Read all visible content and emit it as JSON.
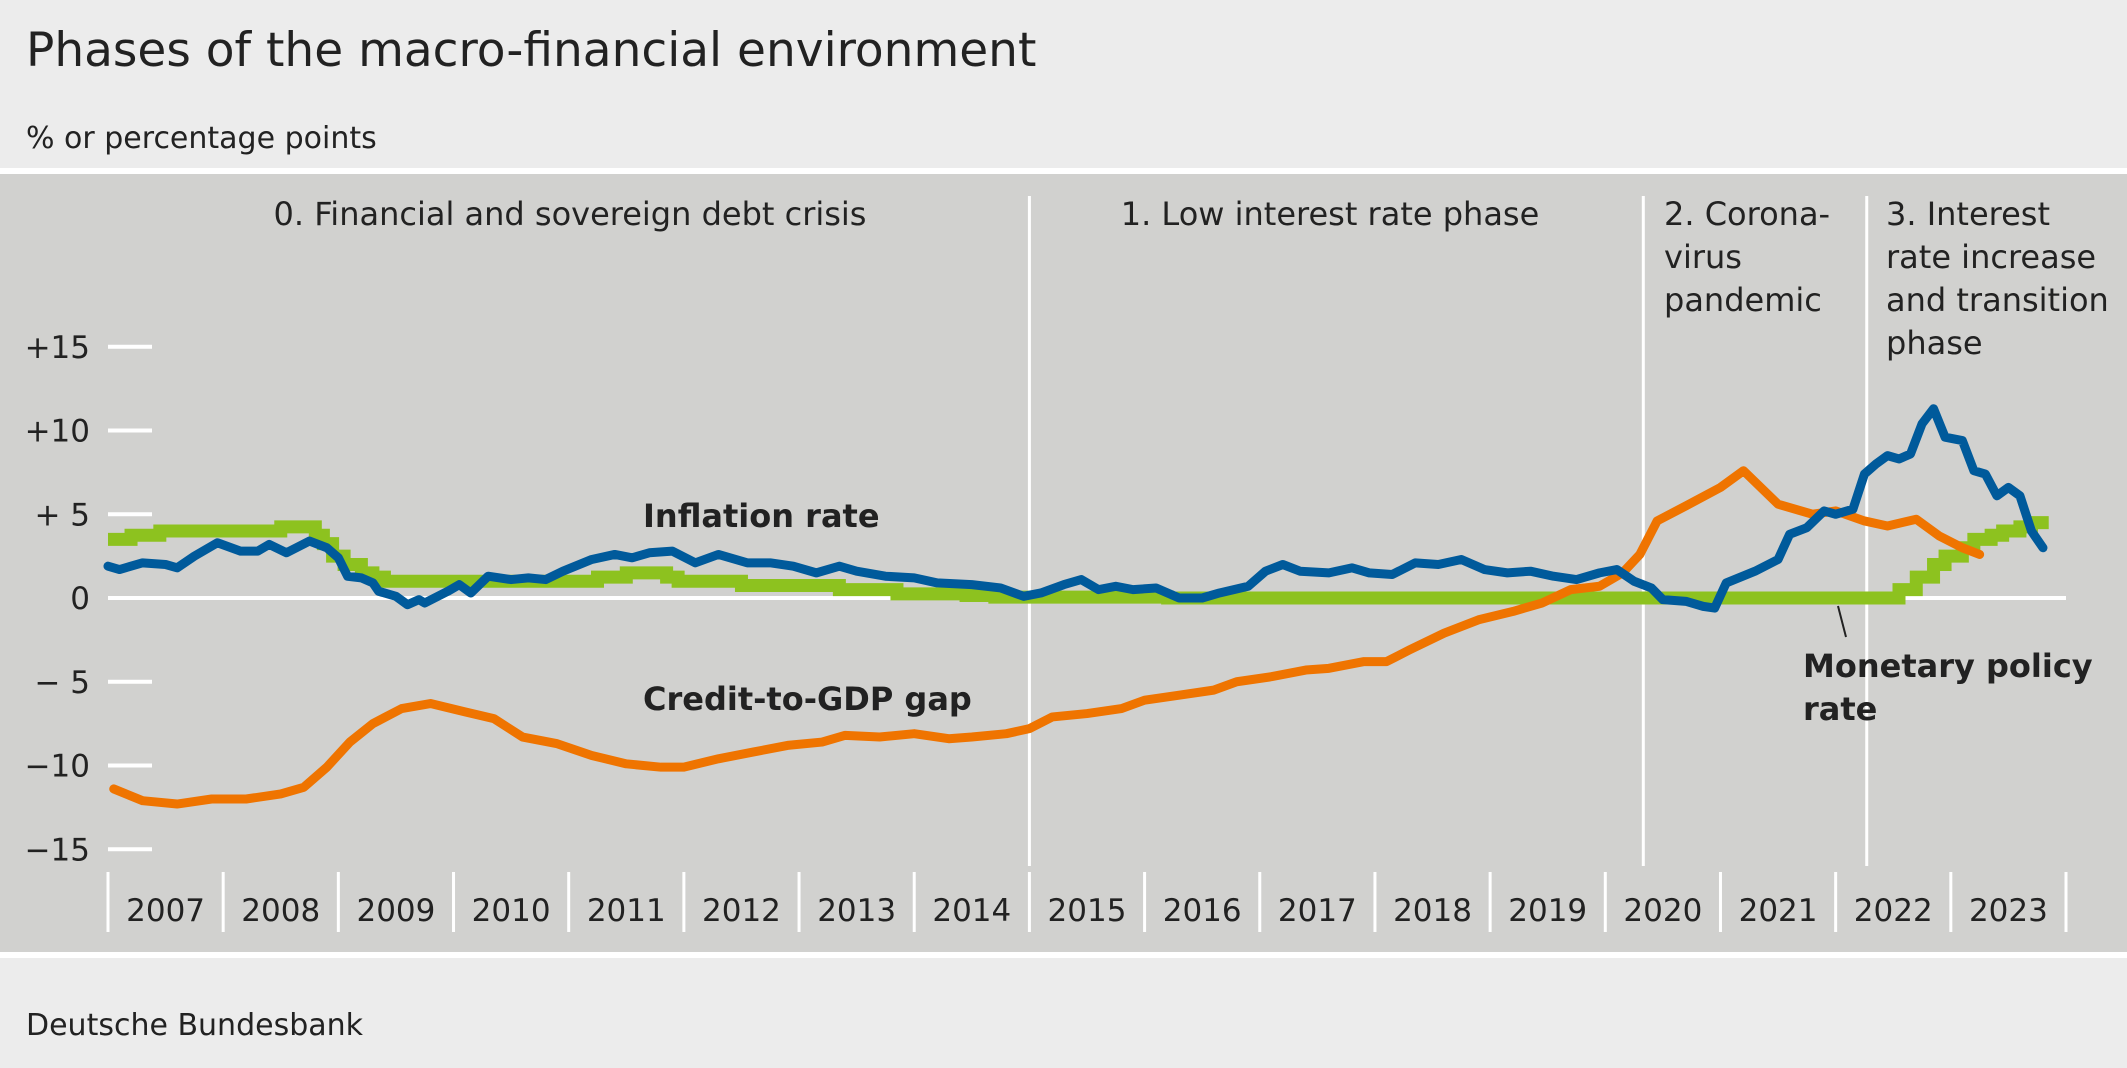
{
  "chart_data": {
    "type": "line",
    "title": "Phases of the macro-financial environment",
    "subtitle": "% or percentage points",
    "source": "Deutsche Bundesbank",
    "xlim": [
      2007,
      2024
    ],
    "ylim": [
      -15,
      15
    ],
    "y_ticks": [
      15,
      10,
      5,
      0,
      -5,
      -10,
      -15
    ],
    "y_tick_labels": [
      "+15",
      "+10",
      "+ 5",
      "0",
      "− 5",
      "−10",
      "−15"
    ],
    "x_tick_labels": [
      "2007",
      "2008",
      "2009",
      "2010",
      "2011",
      "2012",
      "2013",
      "2014",
      "2015",
      "2016",
      "2017",
      "2018",
      "2019",
      "2020",
      "2021",
      "2022",
      "2023"
    ],
    "grid": false,
    "legend": "inline labels",
    "phases": [
      {
        "start": 2007.0,
        "label": [
          "0. Financial and sovereign debt crisis"
        ]
      },
      {
        "start": 2015.0,
        "label": [
          "1. Low interest rate phase"
        ]
      },
      {
        "start": 2020.33,
        "label": [
          "2. Corona-",
          "virus",
          "pandemic"
        ]
      },
      {
        "start": 2022.27,
        "label": [
          "3. Interest",
          "rate increase",
          "and transition",
          "phase"
        ]
      }
    ],
    "series": [
      {
        "name": "Monetary policy rate",
        "label_lines": [
          "Monetary policy",
          "rate"
        ],
        "color": "#8dc21f",
        "step": true,
        "points": [
          [
            2007.0,
            3.5
          ],
          [
            2007.2,
            3.75
          ],
          [
            2007.45,
            4.0
          ],
          [
            2008.5,
            4.25
          ],
          [
            2008.8,
            3.75
          ],
          [
            2008.87,
            3.25
          ],
          [
            2008.95,
            2.5
          ],
          [
            2009.05,
            2.0
          ],
          [
            2009.2,
            1.5
          ],
          [
            2009.3,
            1.25
          ],
          [
            2009.4,
            1.0
          ],
          [
            2011.25,
            1.25
          ],
          [
            2011.5,
            1.5
          ],
          [
            2011.85,
            1.25
          ],
          [
            2011.95,
            1.0
          ],
          [
            2012.5,
            0.75
          ],
          [
            2013.35,
            0.5
          ],
          [
            2013.85,
            0.25
          ],
          [
            2014.45,
            0.15
          ],
          [
            2014.7,
            0.05
          ],
          [
            2016.2,
            0.0
          ],
          [
            2022.55,
            0.5
          ],
          [
            2022.7,
            1.25
          ],
          [
            2022.85,
            2.0
          ],
          [
            2022.95,
            2.5
          ],
          [
            2023.1,
            3.0
          ],
          [
            2023.2,
            3.5
          ],
          [
            2023.35,
            3.75
          ],
          [
            2023.45,
            4.0
          ],
          [
            2023.6,
            4.25
          ],
          [
            2023.7,
            4.5
          ],
          [
            2023.85,
            4.5
          ]
        ]
      },
      {
        "name": "Credit-to-GDP gap",
        "label_lines": [
          "Credit-to-GDP gap"
        ],
        "color": "#ef7400",
        "step": false,
        "points": [
          [
            2007.05,
            -11.4
          ],
          [
            2007.3,
            -12.1
          ],
          [
            2007.6,
            -12.3
          ],
          [
            2007.9,
            -12.0
          ],
          [
            2008.2,
            -12.0
          ],
          [
            2008.5,
            -11.7
          ],
          [
            2008.7,
            -11.3
          ],
          [
            2008.9,
            -10.1
          ],
          [
            2009.1,
            -8.6
          ],
          [
            2009.3,
            -7.5
          ],
          [
            2009.55,
            -6.6
          ],
          [
            2009.8,
            -6.3
          ],
          [
            2010.1,
            -6.8
          ],
          [
            2010.35,
            -7.2
          ],
          [
            2010.6,
            -8.3
          ],
          [
            2010.9,
            -8.7
          ],
          [
            2011.2,
            -9.4
          ],
          [
            2011.5,
            -9.9
          ],
          [
            2011.8,
            -10.1
          ],
          [
            2012.0,
            -10.1
          ],
          [
            2012.3,
            -9.6
          ],
          [
            2012.6,
            -9.2
          ],
          [
            2012.9,
            -8.8
          ],
          [
            2013.2,
            -8.6
          ],
          [
            2013.4,
            -8.2
          ],
          [
            2013.7,
            -8.3
          ],
          [
            2014.0,
            -8.1
          ],
          [
            2014.3,
            -8.4
          ],
          [
            2014.5,
            -8.3
          ],
          [
            2014.8,
            -8.1
          ],
          [
            2015.0,
            -7.8
          ],
          [
            2015.2,
            -7.1
          ],
          [
            2015.5,
            -6.9
          ],
          [
            2015.8,
            -6.6
          ],
          [
            2016.0,
            -6.1
          ],
          [
            2016.3,
            -5.8
          ],
          [
            2016.6,
            -5.5
          ],
          [
            2016.8,
            -5.0
          ],
          [
            2017.1,
            -4.7
          ],
          [
            2017.4,
            -4.3
          ],
          [
            2017.6,
            -4.2
          ],
          [
            2017.9,
            -3.8
          ],
          [
            2018.1,
            -3.8
          ],
          [
            2018.3,
            -3.1
          ],
          [
            2018.6,
            -2.1
          ],
          [
            2018.9,
            -1.3
          ],
          [
            2019.2,
            -0.8
          ],
          [
            2019.45,
            -0.3
          ],
          [
            2019.7,
            0.5
          ],
          [
            2019.95,
            0.7
          ],
          [
            2020.15,
            1.5
          ],
          [
            2020.3,
            2.6
          ],
          [
            2020.45,
            4.6
          ],
          [
            2020.7,
            5.5
          ],
          [
            2021.0,
            6.6
          ],
          [
            2021.2,
            7.6
          ],
          [
            2021.5,
            5.6
          ],
          [
            2021.8,
            5.0
          ],
          [
            2022.0,
            5.2
          ],
          [
            2022.25,
            4.6
          ],
          [
            2022.45,
            4.3
          ],
          [
            2022.7,
            4.7
          ],
          [
            2022.9,
            3.7
          ],
          [
            2023.1,
            3.0
          ],
          [
            2023.25,
            2.6
          ]
        ]
      },
      {
        "name": "Inflation rate",
        "label_lines": [
          "Inflation rate"
        ],
        "color": "#005a9b",
        "step": false,
        "points": [
          [
            2007.0,
            1.9
          ],
          [
            2007.1,
            1.7
          ],
          [
            2007.3,
            2.1
          ],
          [
            2007.5,
            2.0
          ],
          [
            2007.6,
            1.8
          ],
          [
            2007.75,
            2.5
          ],
          [
            2007.95,
            3.3
          ],
          [
            2008.15,
            2.8
          ],
          [
            2008.3,
            2.8
          ],
          [
            2008.4,
            3.2
          ],
          [
            2008.55,
            2.7
          ],
          [
            2008.75,
            3.4
          ],
          [
            2008.9,
            3.0
          ],
          [
            2009.0,
            2.4
          ],
          [
            2009.08,
            1.3
          ],
          [
            2009.2,
            1.2
          ],
          [
            2009.3,
            0.9
          ],
          [
            2009.35,
            0.4
          ],
          [
            2009.5,
            0.1
          ],
          [
            2009.6,
            -0.4
          ],
          [
            2009.7,
            -0.1
          ],
          [
            2009.75,
            -0.3
          ],
          [
            2009.95,
            0.4
          ],
          [
            2010.05,
            0.8
          ],
          [
            2010.15,
            0.3
          ],
          [
            2010.3,
            1.3
          ],
          [
            2010.5,
            1.1
          ],
          [
            2010.65,
            1.2
          ],
          [
            2010.8,
            1.1
          ],
          [
            2010.95,
            1.6
          ],
          [
            2011.2,
            2.3
          ],
          [
            2011.4,
            2.6
          ],
          [
            2011.55,
            2.4
          ],
          [
            2011.7,
            2.7
          ],
          [
            2011.9,
            2.8
          ],
          [
            2012.1,
            2.1
          ],
          [
            2012.3,
            2.6
          ],
          [
            2012.55,
            2.1
          ],
          [
            2012.75,
            2.1
          ],
          [
            2012.95,
            1.9
          ],
          [
            2013.15,
            1.5
          ],
          [
            2013.35,
            1.9
          ],
          [
            2013.5,
            1.6
          ],
          [
            2013.75,
            1.3
          ],
          [
            2014.0,
            1.2
          ],
          [
            2014.2,
            0.9
          ],
          [
            2014.5,
            0.8
          ],
          [
            2014.75,
            0.6
          ],
          [
            2014.95,
            0.1
          ],
          [
            2015.1,
            0.3
          ],
          [
            2015.3,
            0.8
          ],
          [
            2015.45,
            1.1
          ],
          [
            2015.6,
            0.5
          ],
          [
            2015.75,
            0.7
          ],
          [
            2015.9,
            0.5
          ],
          [
            2016.1,
            0.6
          ],
          [
            2016.3,
            0.0
          ],
          [
            2016.5,
            0.0
          ],
          [
            2016.65,
            0.3
          ],
          [
            2016.9,
            0.7
          ],
          [
            2017.05,
            1.6
          ],
          [
            2017.2,
            2.0
          ],
          [
            2017.35,
            1.6
          ],
          [
            2017.6,
            1.5
          ],
          [
            2017.8,
            1.8
          ],
          [
            2017.95,
            1.5
          ],
          [
            2018.15,
            1.4
          ],
          [
            2018.35,
            2.1
          ],
          [
            2018.55,
            2.0
          ],
          [
            2018.75,
            2.3
          ],
          [
            2018.95,
            1.7
          ],
          [
            2019.15,
            1.5
          ],
          [
            2019.35,
            1.6
          ],
          [
            2019.55,
            1.3
          ],
          [
            2019.75,
            1.1
          ],
          [
            2019.95,
            1.5
          ],
          [
            2020.1,
            1.7
          ],
          [
            2020.25,
            1.0
          ],
          [
            2020.4,
            0.6
          ],
          [
            2020.5,
            -0.1
          ],
          [
            2020.7,
            -0.2
          ],
          [
            2020.85,
            -0.5
          ],
          [
            2020.95,
            -0.6
          ],
          [
            2021.05,
            0.9
          ],
          [
            2021.3,
            1.6
          ],
          [
            2021.5,
            2.3
          ],
          [
            2021.6,
            3.8
          ],
          [
            2021.75,
            4.2
          ],
          [
            2021.9,
            5.2
          ],
          [
            2022.0,
            5.0
          ],
          [
            2022.15,
            5.3
          ],
          [
            2022.25,
            7.4
          ],
          [
            2022.35,
            8.0
          ],
          [
            2022.45,
            8.5
          ],
          [
            2022.55,
            8.3
          ],
          [
            2022.65,
            8.6
          ],
          [
            2022.75,
            10.4
          ],
          [
            2022.85,
            11.3
          ],
          [
            2022.95,
            9.6
          ],
          [
            2023.1,
            9.4
          ],
          [
            2023.2,
            7.6
          ],
          [
            2023.3,
            7.4
          ],
          [
            2023.4,
            6.1
          ],
          [
            2023.5,
            6.6
          ],
          [
            2023.6,
            6.1
          ],
          [
            2023.7,
            4.0
          ],
          [
            2023.8,
            3.0
          ]
        ]
      }
    ]
  }
}
